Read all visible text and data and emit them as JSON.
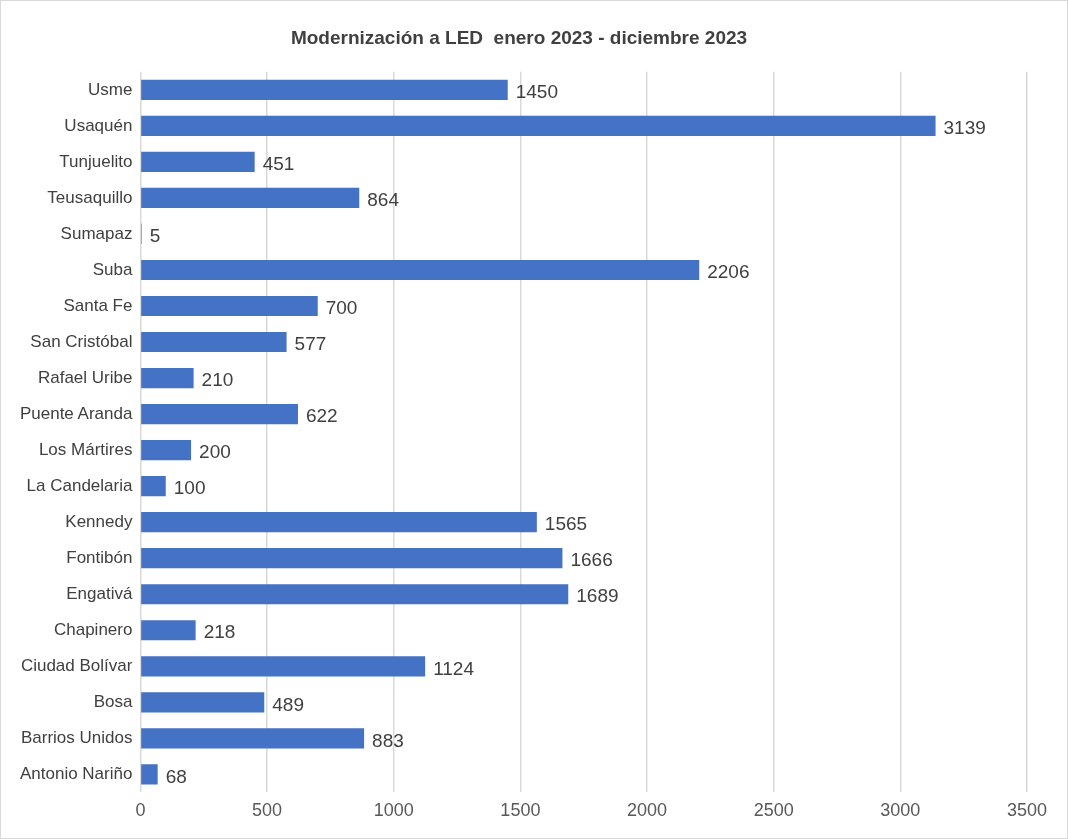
{
  "chart_data": {
    "type": "bar",
    "orientation": "horizontal",
    "title": "Modernización a LED  enero 2023 - diciembre 2023",
    "categories": [
      "Usme",
      "Usaquén",
      "Tunjuelito",
      "Teusaquillo",
      "Sumapaz",
      "Suba",
      "Santa Fe",
      "San Cristóbal",
      "Rafael Uribe",
      "Puente Aranda",
      "Los Mártires",
      "La Candelaria",
      "Kennedy",
      "Fontibón",
      "Engativá",
      "Chapinero",
      "Ciudad Bolívar",
      "Bosa",
      "Barrios Unidos",
      "Antonio Nariño"
    ],
    "values": [
      1450,
      3139,
      451,
      864,
      5,
      2206,
      700,
      577,
      210,
      622,
      200,
      100,
      1565,
      1666,
      1689,
      218,
      1124,
      489,
      883,
      68
    ],
    "color": "#4472c4",
    "xlim": [
      0,
      3500
    ],
    "xticks": [
      0,
      500,
      1000,
      1500,
      2000,
      2500,
      3000,
      3500
    ],
    "grid": "x",
    "legend": false,
    "data_labels": true
  }
}
